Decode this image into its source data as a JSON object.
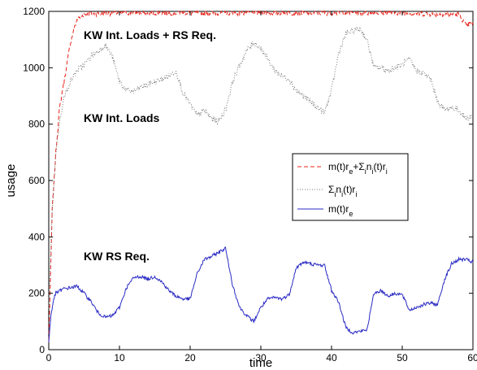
{
  "chart_data": {
    "type": "line",
    "title": "",
    "xlabel": "time",
    "ylabel": "usage",
    "xlim": [
      0,
      60
    ],
    "ylim": [
      0,
      1200
    ],
    "x_ticks": [
      "0",
      "10",
      "20",
      "30",
      "40",
      "50",
      "60"
    ],
    "y_ticks": [
      "0",
      "200",
      "400",
      "600",
      "800",
      "1000",
      "1200"
    ],
    "grid": false,
    "legend_position": "right-center",
    "annotations": [
      "KW Int. Loads + RS Req.",
      "KW Int. Loads",
      "KW RS Req."
    ],
    "series": [
      {
        "name": "m(t)r_e+Σ_i n_i(t)r_i",
        "legend": {
          "base": "m(t)r",
          "sub1": "e",
          "mid": "+Σ",
          "sub2": "i",
          "mid2": "n",
          "sub3": "i",
          "tail": "(t)r",
          "sub4": "i"
        },
        "style": "dashed",
        "color": "#e8241b",
        "points": [
          [
            0,
            30
          ],
          [
            0.5,
            500
          ],
          [
            1,
            700
          ],
          [
            1.5,
            850
          ],
          [
            2,
            930
          ],
          [
            2.5,
            1000
          ],
          [
            3,
            1080
          ],
          [
            3.5,
            1130
          ],
          [
            4,
            1170
          ],
          [
            5,
            1190
          ],
          [
            10,
            1195
          ],
          [
            15,
            1195
          ],
          [
            20,
            1195
          ],
          [
            25,
            1195
          ],
          [
            30,
            1195
          ],
          [
            35,
            1195
          ],
          [
            40,
            1195
          ],
          [
            45,
            1195
          ],
          [
            50,
            1195
          ],
          [
            55,
            1190
          ],
          [
            58,
            1190
          ],
          [
            59,
            1150
          ],
          [
            60,
            1160
          ]
        ]
      },
      {
        "name": "Σ_i n_i(t)r_i",
        "legend": {
          "base": "Σ",
          "sub1": "i",
          "mid": "n",
          "sub2": "i",
          "tail": "(t)r",
          "sub3": "i"
        },
        "style": "dotted",
        "color": "#777777",
        "points": [
          [
            0,
            150
          ],
          [
            0.5,
            500
          ],
          [
            1,
            700
          ],
          [
            1.5,
            800
          ],
          [
            2,
            880
          ],
          [
            3,
            950
          ],
          [
            4,
            990
          ],
          [
            5,
            1010
          ],
          [
            6,
            1040
          ],
          [
            7,
            1060
          ],
          [
            8,
            1080
          ],
          [
            9,
            1040
          ],
          [
            10,
            950
          ],
          [
            11,
            920
          ],
          [
            12,
            915
          ],
          [
            13,
            930
          ],
          [
            14,
            940
          ],
          [
            15,
            950
          ],
          [
            16,
            960
          ],
          [
            17,
            970
          ],
          [
            18,
            990
          ],
          [
            19,
            910
          ],
          [
            20,
            870
          ],
          [
            21,
            830
          ],
          [
            22,
            850
          ],
          [
            23,
            820
          ],
          [
            24,
            810
          ],
          [
            25,
            850
          ],
          [
            26,
            950
          ],
          [
            27,
            1010
          ],
          [
            28,
            1060
          ],
          [
            29,
            1090
          ],
          [
            30,
            1070
          ],
          [
            31,
            1030
          ],
          [
            32,
            990
          ],
          [
            33,
            970
          ],
          [
            34,
            960
          ],
          [
            35,
            920
          ],
          [
            36,
            900
          ],
          [
            37,
            880
          ],
          [
            38,
            860
          ],
          [
            39,
            840
          ],
          [
            40,
            920
          ],
          [
            41,
            1050
          ],
          [
            42,
            1120
          ],
          [
            43,
            1130
          ],
          [
            44,
            1140
          ],
          [
            45,
            1100
          ],
          [
            46,
            1000
          ],
          [
            47,
            1000
          ],
          [
            48,
            990
          ],
          [
            49,
            1000
          ],
          [
            50,
            1010
          ],
          [
            51,
            1030
          ],
          [
            52,
            990
          ],
          [
            53,
            980
          ],
          [
            54,
            960
          ],
          [
            55,
            880
          ],
          [
            56,
            850
          ],
          [
            57,
            860
          ],
          [
            58,
            850
          ],
          [
            59,
            820
          ],
          [
            60,
            830
          ]
        ]
      },
      {
        "name": "m(t)r_e",
        "legend": {
          "base": "m(t)r",
          "sub1": "e"
        },
        "style": "solid",
        "color": "#2b2bc4",
        "points": [
          [
            0,
            30
          ],
          [
            0.3,
            120
          ],
          [
            0.7,
            180
          ],
          [
            1,
            200
          ],
          [
            2,
            215
          ],
          [
            3,
            220
          ],
          [
            4,
            225
          ],
          [
            5,
            200
          ],
          [
            6,
            170
          ],
          [
            7,
            130
          ],
          [
            8,
            115
          ],
          [
            9,
            120
          ],
          [
            10,
            150
          ],
          [
            11,
            220
          ],
          [
            12,
            255
          ],
          [
            13,
            260
          ],
          [
            14,
            250
          ],
          [
            15,
            260
          ],
          [
            16,
            240
          ],
          [
            17,
            210
          ],
          [
            18,
            190
          ],
          [
            19,
            180
          ],
          [
            20,
            180
          ],
          [
            21,
            270
          ],
          [
            22,
            320
          ],
          [
            23,
            330
          ],
          [
            24,
            345
          ],
          [
            25,
            360
          ],
          [
            26,
            230
          ],
          [
            27,
            150
          ],
          [
            28,
            120
          ],
          [
            29,
            100
          ],
          [
            30,
            150
          ],
          [
            31,
            180
          ],
          [
            32,
            185
          ],
          [
            33,
            180
          ],
          [
            34,
            195
          ],
          [
            35,
            290
          ],
          [
            36,
            310
          ],
          [
            37,
            305
          ],
          [
            38,
            300
          ],
          [
            39,
            300
          ],
          [
            40,
            210
          ],
          [
            41,
            170
          ],
          [
            42,
            80
          ],
          [
            43,
            60
          ],
          [
            44,
            65
          ],
          [
            45,
            70
          ],
          [
            46,
            200
          ],
          [
            47,
            210
          ],
          [
            48,
            190
          ],
          [
            49,
            200
          ],
          [
            50,
            195
          ],
          [
            51,
            140
          ],
          [
            52,
            150
          ],
          [
            53,
            160
          ],
          [
            54,
            165
          ],
          [
            55,
            160
          ],
          [
            56,
            250
          ],
          [
            57,
            305
          ],
          [
            58,
            320
          ],
          [
            59,
            320
          ],
          [
            60,
            310
          ]
        ]
      }
    ]
  }
}
